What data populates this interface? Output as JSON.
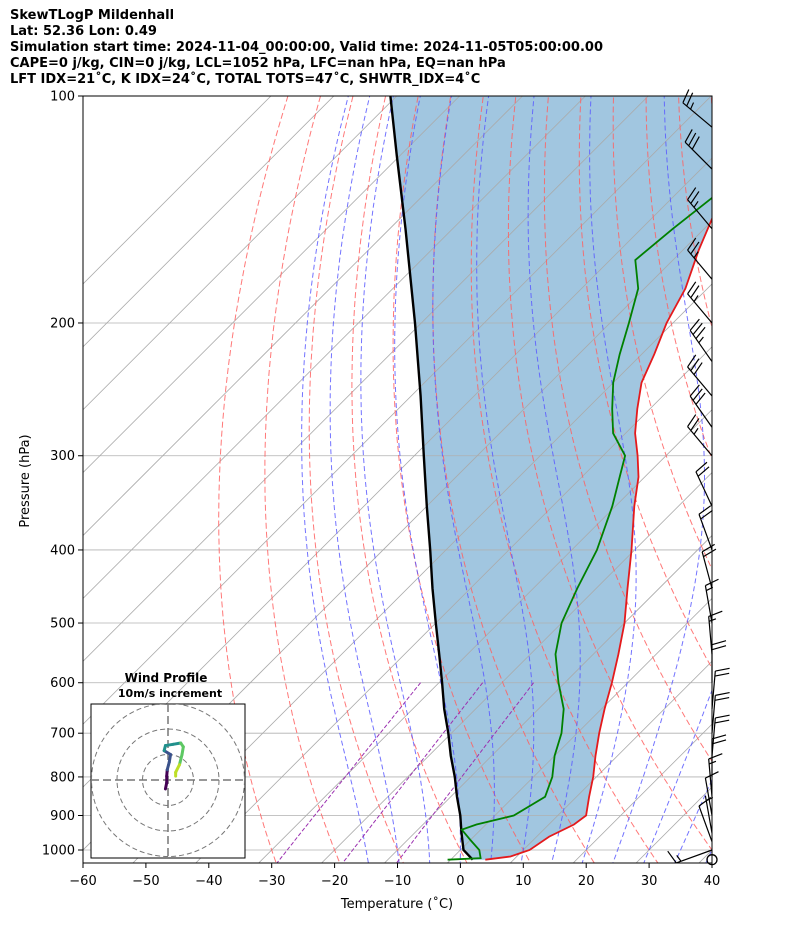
{
  "header": {
    "line1": "SkewTLogP Mildenhall",
    "line2": "Lat: 52.36   Lon: 0.49",
    "line3": "Simulation start time: 2024-11-04_00:00:00, Valid time: 2024-11-05T05:00:00.00",
    "line4": "CAPE=0 j/kg, CIN=0 j/kg, LCL=1052 hPa, LFC=nan hPa, EQ=nan hPa",
    "line5": "LFT IDX=21˚C, K IDX=24˚C, TOTAL TOTS=47˚C, SHWTR_IDX=4˚C"
  },
  "colors": {
    "temperature": "#e41a1c",
    "dewpoint": "#008000",
    "parcel": "#000000",
    "fill": "#a1c6e0",
    "dry_adiabat": "#ff6060",
    "moist_adiabat": "#5a5aff",
    "mixing_ratio": "#9b30b0",
    "isotherm": "#aaaaaa",
    "grid": "#b0b0b0"
  },
  "chart_data": {
    "type": "line",
    "xlabel": "Temperature (˚C)",
    "ylabel": "Pressure (hPa)",
    "xlim": [
      -60,
      40
    ],
    "ylim": [
      1040,
      100
    ],
    "y_scale": "log",
    "skew": true,
    "grid": true,
    "x_ticks": [
      "−60",
      "−50",
      "−40",
      "−30",
      "−20",
      "−10",
      "0",
      "10",
      "20",
      "30",
      "40"
    ],
    "y_ticks": [
      "100",
      "200",
      "300",
      "400",
      "500",
      "600",
      "700",
      "800",
      "900",
      "1000"
    ],
    "series": [
      {
        "role": "temperature",
        "points": [
          {
            "p": 1030,
            "t": 5.5
          },
          {
            "p": 1020,
            "t": 9
          },
          {
            "p": 1000,
            "t": 11
          },
          {
            "p": 960,
            "t": 12
          },
          {
            "p": 925,
            "t": 14
          },
          {
            "p": 900,
            "t": 14.5
          },
          {
            "p": 850,
            "t": 12
          },
          {
            "p": 800,
            "t": 9.5
          },
          {
            "p": 750,
            "t": 6.5
          },
          {
            "p": 700,
            "t": 3.5
          },
          {
            "p": 650,
            "t": 0.5
          },
          {
            "p": 600,
            "t": -2.5
          },
          {
            "p": 550,
            "t": -6
          },
          {
            "p": 500,
            "t": -10
          },
          {
            "p": 450,
            "t": -15
          },
          {
            "p": 400,
            "t": -20.5
          },
          {
            "p": 350,
            "t": -27
          },
          {
            "p": 320,
            "t": -31
          },
          {
            "p": 300,
            "t": -34.5
          },
          {
            "p": 280,
            "t": -38.5
          },
          {
            "p": 260,
            "t": -42
          },
          {
            "p": 240,
            "t": -45.5
          },
          {
            "p": 220,
            "t": -48
          },
          {
            "p": 200,
            "t": -51
          },
          {
            "p": 180,
            "t": -53.5
          },
          {
            "p": 160,
            "t": -57.5
          },
          {
            "p": 140,
            "t": -61.5
          },
          {
            "p": 120,
            "t": -66.5
          },
          {
            "p": 110,
            "t": -69.5
          },
          {
            "p": 100,
            "t": -72
          }
        ]
      },
      {
        "role": "dewpoint",
        "points": [
          {
            "p": 1030,
            "t": -0.5
          },
          {
            "p": 1025,
            "t": 4.5
          },
          {
            "p": 1000,
            "t": 3
          },
          {
            "p": 970,
            "t": 0
          },
          {
            "p": 940,
            "t": -3
          },
          {
            "p": 925,
            "t": -1.5
          },
          {
            "p": 900,
            "t": 3
          },
          {
            "p": 850,
            "t": 5
          },
          {
            "p": 800,
            "t": 3
          },
          {
            "p": 750,
            "t": 0
          },
          {
            "p": 700,
            "t": -2.5
          },
          {
            "p": 650,
            "t": -6
          },
          {
            "p": 600,
            "t": -11
          },
          {
            "p": 550,
            "t": -16
          },
          {
            "p": 500,
            "t": -20
          },
          {
            "p": 450,
            "t": -23
          },
          {
            "p": 400,
            "t": -26
          },
          {
            "p": 350,
            "t": -30.5
          },
          {
            "p": 320,
            "t": -34
          },
          {
            "p": 300,
            "t": -36.5
          },
          {
            "p": 280,
            "t": -42
          },
          {
            "p": 260,
            "t": -46
          },
          {
            "p": 240,
            "t": -50
          },
          {
            "p": 220,
            "t": -53.5
          },
          {
            "p": 200,
            "t": -57
          },
          {
            "p": 180,
            "t": -61
          },
          {
            "p": 165,
            "t": -66
          },
          {
            "p": 150,
            "t": -65
          },
          {
            "p": 130,
            "t": -63
          },
          {
            "p": 115,
            "t": -61.5
          },
          {
            "p": 100,
            "t": -59.5
          }
        ]
      },
      {
        "role": "parcel",
        "points": [
          {
            "p": 1030,
            "t": 3.5
          },
          {
            "p": 1000,
            "t": 0.5
          },
          {
            "p": 950,
            "t": -2.5
          },
          {
            "p": 900,
            "t": -5.5
          },
          {
            "p": 850,
            "t": -9
          },
          {
            "p": 800,
            "t": -12.5
          },
          {
            "p": 750,
            "t": -16.5
          },
          {
            "p": 700,
            "t": -20.5
          },
          {
            "p": 650,
            "t": -25
          },
          {
            "p": 600,
            "t": -29.5
          },
          {
            "p": 550,
            "t": -34.5
          },
          {
            "p": 500,
            "t": -40
          },
          {
            "p": 450,
            "t": -46
          },
          {
            "p": 400,
            "t": -52.5
          },
          {
            "p": 350,
            "t": -60
          },
          {
            "p": 300,
            "t": -68.5
          },
          {
            "p": 250,
            "t": -78.5
          },
          {
            "p": 200,
            "t": -91
          },
          {
            "p": 150,
            "t": -107.5
          },
          {
            "p": 120,
            "t": -120.5
          },
          {
            "p": 100,
            "t": -131
          }
        ]
      }
    ],
    "wind_barbs": [
      {
        "p": 1000,
        "spd": 15,
        "dir": 250
      },
      {
        "p": 975,
        "spd": 10,
        "dir": 340
      },
      {
        "p": 950,
        "spd": 5,
        "dir": 350
      },
      {
        "p": 900,
        "spd": 10,
        "dir": 350
      },
      {
        "p": 850,
        "spd": 15,
        "dir": 355
      },
      {
        "p": 800,
        "spd": 20,
        "dir": 0
      },
      {
        "p": 750,
        "spd": 20,
        "dir": 5
      },
      {
        "p": 700,
        "spd": 20,
        "dir": 5
      },
      {
        "p": 650,
        "spd": 20,
        "dir": 5
      },
      {
        "p": 600,
        "spd": 20,
        "dir": 0
      },
      {
        "p": 550,
        "spd": 15,
        "dir": 355
      },
      {
        "p": 500,
        "spd": 15,
        "dir": 350
      },
      {
        "p": 450,
        "spd": 20,
        "dir": 345
      },
      {
        "p": 400,
        "spd": 20,
        "dir": 340
      },
      {
        "p": 350,
        "spd": 20,
        "dir": 335
      },
      {
        "p": 300,
        "spd": 25,
        "dir": 320
      },
      {
        "p": 275,
        "spd": 30,
        "dir": 325
      },
      {
        "p": 250,
        "spd": 30,
        "dir": 320
      },
      {
        "p": 225,
        "spd": 35,
        "dir": 325
      },
      {
        "p": 200,
        "spd": 25,
        "dir": 320
      },
      {
        "p": 175,
        "spd": 25,
        "dir": 320
      },
      {
        "p": 150,
        "spd": 25,
        "dir": 320
      },
      {
        "p": 125,
        "spd": 30,
        "dir": 315
      },
      {
        "p": 110,
        "spd": 25,
        "dir": 310
      }
    ],
    "inset": {
      "title_line1": "Wind Profile",
      "title_line2": "10m/s increment",
      "rings": [
        10,
        20,
        30
      ],
      "hodograph": [
        {
          "u": -1,
          "v": -3.5
        },
        {
          "u": -0.5,
          "v": -1
        },
        {
          "u": -0.5,
          "v": 1.5
        },
        {
          "u": -0.3,
          "v": 4
        },
        {
          "u": 0.5,
          "v": 7
        },
        {
          "u": 1,
          "v": 10
        },
        {
          "u": -1.5,
          "v": 11.5
        },
        {
          "u": -1,
          "v": 13.5
        },
        {
          "u": 2,
          "v": 14
        },
        {
          "u": 5,
          "v": 14.5
        },
        {
          "u": 6,
          "v": 13
        },
        {
          "u": 5.5,
          "v": 10
        },
        {
          "u": 4.5,
          "v": 6
        },
        {
          "u": 3,
          "v": 3
        },
        {
          "u": 3,
          "v": 1.5
        }
      ]
    }
  }
}
